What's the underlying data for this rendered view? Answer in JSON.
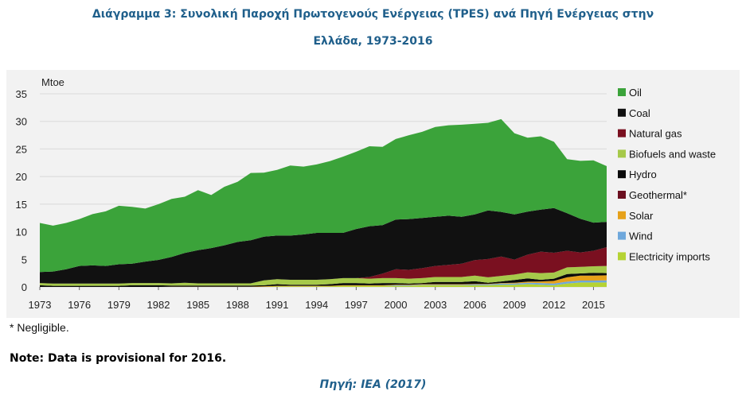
{
  "title_line1": "Διάγραμμα 3: Συνολική Παροχή Πρωτογενούς Ενέργειας (TPES) ανά Πηγή Ενέργειας στην",
  "title_line2": "Ελλάδα, 1973-2016",
  "footnote": "* Negligible.",
  "note": "Note: Data is provisional for 2016.",
  "source": "Πηγή: IEA (2017)",
  "chart_data": {
    "type": "area",
    "stacked": true,
    "ylabel": "Mtoe",
    "ylim": [
      0,
      35
    ],
    "yticks": [
      "0",
      "5",
      "10",
      "15",
      "20",
      "25",
      "30",
      "35"
    ],
    "xlim": [
      1973,
      2016
    ],
    "xticks": [
      "1973",
      "1976",
      "1979",
      "1982",
      "1985",
      "1988",
      "1991",
      "1994",
      "1997",
      "2000",
      "2003",
      "2006",
      "2009",
      "2012",
      "2015"
    ],
    "grid": "horizontal",
    "legend_position": "right",
    "x": [
      1973,
      1974,
      1975,
      1976,
      1977,
      1978,
      1979,
      1980,
      1981,
      1982,
      1983,
      1984,
      1985,
      1986,
      1987,
      1988,
      1989,
      1990,
      1991,
      1992,
      1993,
      1994,
      1995,
      1996,
      1997,
      1998,
      1999,
      2000,
      2001,
      2002,
      2003,
      2004,
      2005,
      2006,
      2007,
      2008,
      2009,
      2010,
      2011,
      2012,
      2013,
      2014,
      2015,
      2016
    ],
    "series": [
      {
        "name": "Electricity imports",
        "color": "#b5d334",
        "values": [
          0,
          0,
          0,
          0,
          0,
          0,
          0,
          0,
          0,
          0,
          0,
          0,
          0,
          0,
          0,
          0,
          0,
          0,
          0.1,
          0.1,
          0.1,
          0.1,
          0.1,
          0.2,
          0.2,
          0.2,
          0.2,
          0.2,
          0.2,
          0.3,
          0.3,
          0.3,
          0.3,
          0.3,
          0.3,
          0.4,
          0.4,
          0.5,
          0.4,
          0.3,
          0.6,
          0.8,
          0.8,
          0.8
        ]
      },
      {
        "name": "Wind",
        "color": "#6fa8dc",
        "values": [
          0,
          0,
          0,
          0,
          0,
          0,
          0,
          0,
          0,
          0,
          0,
          0,
          0,
          0,
          0,
          0,
          0,
          0,
          0,
          0,
          0,
          0,
          0,
          0,
          0,
          0,
          0,
          0.1,
          0.1,
          0.1,
          0.1,
          0.1,
          0.1,
          0.15,
          0.15,
          0.2,
          0.2,
          0.25,
          0.3,
          0.3,
          0.35,
          0.35,
          0.35,
          0.4
        ]
      },
      {
        "name": "Solar",
        "color": "#e6a11a",
        "values": [
          0,
          0,
          0,
          0,
          0,
          0,
          0,
          0,
          0,
          0,
          0.05,
          0.05,
          0.05,
          0.05,
          0.05,
          0.05,
          0.05,
          0.1,
          0.1,
          0.1,
          0.1,
          0.1,
          0.1,
          0.1,
          0.1,
          0.1,
          0.1,
          0.1,
          0.1,
          0.1,
          0.1,
          0.1,
          0.1,
          0.1,
          0.1,
          0.1,
          0.15,
          0.2,
          0.3,
          0.5,
          0.8,
          0.9,
          0.9,
          0.9
        ]
      },
      {
        "name": "Geothermal*",
        "color": "#6b0f1f",
        "values": [
          0,
          0,
          0,
          0,
          0,
          0,
          0,
          0,
          0,
          0,
          0,
          0,
          0,
          0,
          0,
          0,
          0,
          0,
          0,
          0,
          0,
          0,
          0,
          0,
          0,
          0,
          0,
          0,
          0,
          0,
          0,
          0,
          0,
          0,
          0,
          0,
          0,
          0,
          0,
          0,
          0,
          0,
          0,
          0
        ]
      },
      {
        "name": "Hydro",
        "color": "#0a0a0a",
        "values": [
          0.3,
          0.2,
          0.2,
          0.2,
          0.2,
          0.2,
          0.2,
          0.3,
          0.3,
          0.3,
          0.2,
          0.2,
          0.2,
          0.2,
          0.2,
          0.2,
          0.2,
          0.2,
          0.3,
          0.2,
          0.2,
          0.2,
          0.3,
          0.4,
          0.4,
          0.3,
          0.4,
          0.3,
          0.2,
          0.2,
          0.4,
          0.4,
          0.4,
          0.5,
          0.2,
          0.3,
          0.5,
          0.6,
          0.3,
          0.4,
          0.6,
          0.4,
          0.5,
          0.4
        ]
      },
      {
        "name": "Biofuels and waste",
        "color": "#a6c94a",
        "values": [
          0.4,
          0.4,
          0.4,
          0.4,
          0.4,
          0.4,
          0.4,
          0.4,
          0.4,
          0.4,
          0.4,
          0.5,
          0.4,
          0.4,
          0.4,
          0.4,
          0.4,
          0.9,
          0.9,
          0.9,
          0.9,
          0.9,
          0.9,
          0.9,
          0.9,
          0.9,
          0.9,
          0.9,
          0.9,
          0.9,
          0.9,
          0.9,
          0.9,
          1.0,
          1.0,
          1.0,
          1.0,
          1.1,
          1.2,
          1.1,
          1.2,
          1.2,
          1.2,
          1.3
        ]
      },
      {
        "name": "Natural gas",
        "color": "#7a1020",
        "values": [
          0,
          0,
          0,
          0,
          0,
          0,
          0,
          0,
          0,
          0,
          0,
          0,
          0,
          0,
          0,
          0,
          0,
          0,
          0,
          0,
          0,
          0,
          0,
          0,
          0,
          0.3,
          0.8,
          1.6,
          1.6,
          1.8,
          2.0,
          2.2,
          2.4,
          2.8,
          3.3,
          3.5,
          2.7,
          3.2,
          3.9,
          3.6,
          3.0,
          2.6,
          2.8,
          3.4
        ]
      },
      {
        "name": "Coal",
        "color": "#111111",
        "values": [
          2.0,
          2.2,
          2.6,
          3.2,
          3.3,
          3.2,
          3.5,
          3.5,
          3.9,
          4.2,
          4.8,
          5.4,
          6.0,
          6.4,
          6.9,
          7.5,
          7.8,
          7.9,
          7.9,
          8.0,
          8.2,
          8.5,
          8.4,
          8.2,
          8.9,
          9.2,
          8.8,
          9.0,
          9.2,
          9.1,
          8.9,
          8.9,
          8.5,
          8.3,
          8.8,
          8.1,
          8.2,
          7.8,
          7.6,
          8.1,
          6.8,
          6.1,
          5.1,
          4.6
        ]
      },
      {
        "name": "Oil",
        "color": "#3ba33a",
        "values": [
          8.9,
          8.3,
          8.4,
          8.5,
          9.3,
          9.9,
          10.6,
          10.3,
          9.6,
          10.1,
          10.5,
          10.2,
          10.9,
          9.6,
          10.6,
          10.9,
          12.2,
          11.6,
          11.9,
          12.7,
          12.3,
          12.4,
          13.0,
          13.8,
          14.0,
          14.5,
          14.2,
          14.6,
          15.2,
          15.6,
          16.3,
          16.4,
          16.7,
          16.4,
          15.9,
          16.8,
          14.7,
          13.4,
          13.3,
          12.0,
          9.8,
          10.5,
          11.3,
          10.1
        ]
      }
    ],
    "legend_order": [
      "Oil",
      "Coal",
      "Natural gas",
      "Biofuels and waste",
      "Hydro",
      "Geothermal*",
      "Solar",
      "Wind",
      "Electricity imports"
    ]
  }
}
